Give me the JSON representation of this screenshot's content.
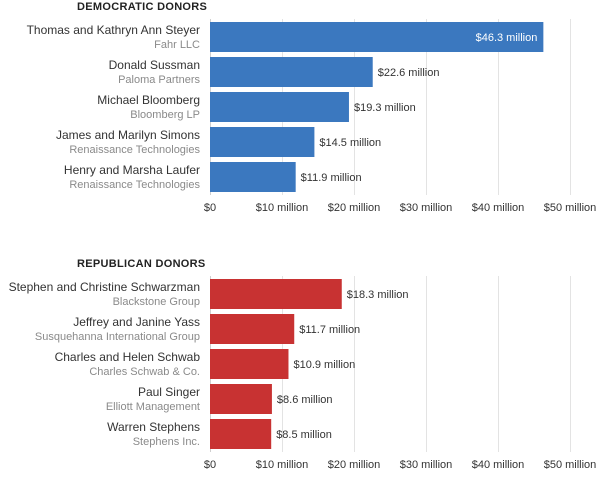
{
  "chart_data": [
    {
      "type": "bar",
      "orientation": "horizontal",
      "title": "DEMOCRATIC DONORS",
      "color": "#3b78bf",
      "xlim": [
        0,
        50
      ],
      "x_ticks": [
        "$0",
        "$10 million",
        "$20 million",
        "$30 million",
        "$40 million",
        "$50 million"
      ],
      "grid": true,
      "rows": [
        {
          "name": "Thomas and Kathryn Ann Steyer",
          "org": "Fahr LLC",
          "value": 46.3,
          "label": "$46.3 million"
        },
        {
          "name": "Donald Sussman",
          "org": "Paloma Partners",
          "value": 22.6,
          "label": "$22.6 million"
        },
        {
          "name": "Michael Bloomberg",
          "org": "Bloomberg LP",
          "value": 19.3,
          "label": "$19.3 million"
        },
        {
          "name": "James and Marilyn Simons",
          "org": "Renaissance Technologies",
          "value": 14.5,
          "label": "$14.5 million"
        },
        {
          "name": "Henry and Marsha Laufer",
          "org": "Renaissance Technologies",
          "value": 11.9,
          "label": "$11.9 million"
        }
      ]
    },
    {
      "type": "bar",
      "orientation": "horizontal",
      "title": "REPUBLICAN DONORS",
      "color": "#c83232",
      "xlim": [
        0,
        50
      ],
      "x_ticks": [
        "$0",
        "$10 million",
        "$20 million",
        "$30 million",
        "$40 million",
        "$50 million"
      ],
      "grid": true,
      "rows": [
        {
          "name": "Stephen and Christine Schwarzman",
          "org": "Blackstone Group",
          "value": 18.3,
          "label": "$18.3 million"
        },
        {
          "name": "Jeffrey and Janine Yass",
          "org": "Susquehanna International Group",
          "value": 11.7,
          "label": "$11.7 million"
        },
        {
          "name": "Charles and Helen Schwab",
          "org": "Charles Schwab & Co.",
          "value": 10.9,
          "label": "$10.9 million"
        },
        {
          "name": "Paul Singer",
          "org": "Elliott Management",
          "value": 8.6,
          "label": "$8.6 million"
        },
        {
          "name": "Warren Stephens",
          "org": "Stephens Inc.",
          "value": 8.5,
          "label": "$8.5 million"
        }
      ]
    }
  ]
}
